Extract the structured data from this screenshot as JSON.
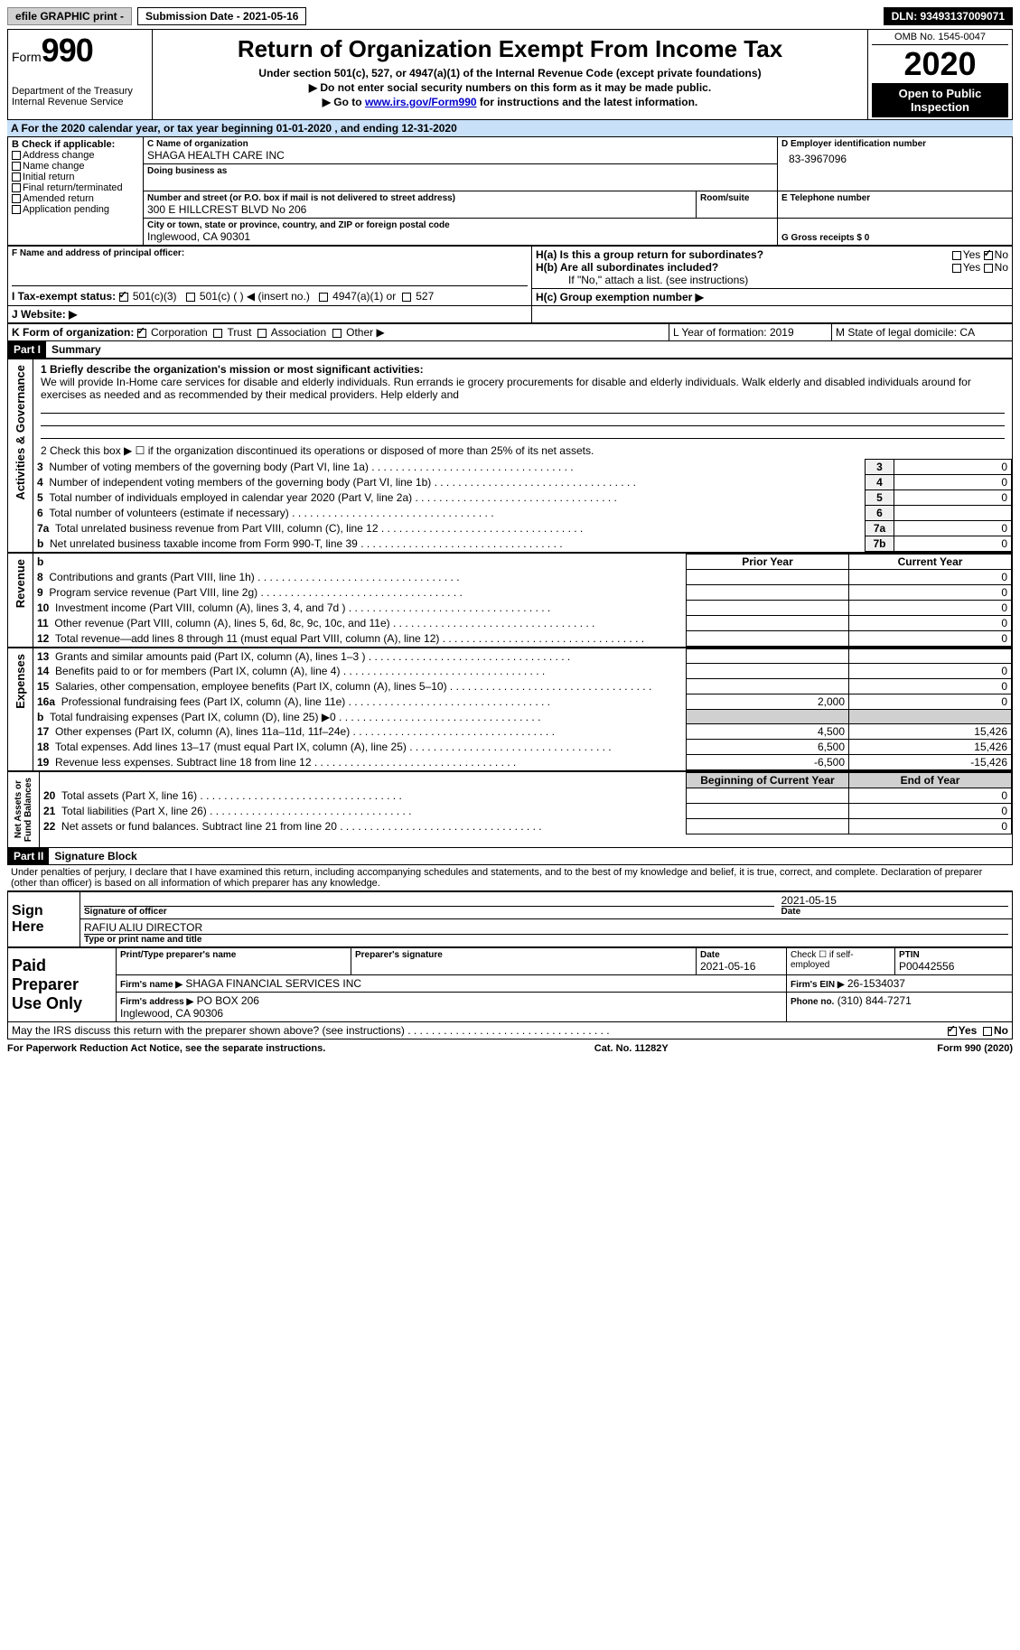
{
  "topbar": {
    "efile": "efile GRAPHIC print -",
    "submission": "Submission Date - 2021-05-16",
    "dln": "DLN: 93493137009071"
  },
  "header": {
    "form_label": "Form",
    "form_num": "990",
    "dept": "Department of the Treasury\nInternal Revenue Service",
    "title": "Return of Organization Exempt From Income Tax",
    "under": "Under section 501(c), 527, or 4947(a)(1) of the Internal Revenue Code (except private foundations)",
    "line1": "▶ Do not enter social security numbers on this form as it may be made public.",
    "line2_a": "▶ Go to ",
    "line2_link": "www.irs.gov/Form990",
    "line2_b": " for instructions and the latest information.",
    "omb": "OMB No. 1545-0047",
    "tax_year": "2020",
    "open": "Open to Public Inspection"
  },
  "row_a": "A For the 2020 calendar year, or tax year beginning 01-01-2020   , and ending 12-31-2020",
  "section_b": {
    "label": "B Check if applicable:",
    "opts": [
      "Address change",
      "Name change",
      "Initial return",
      "Final return/terminated",
      "Amended return",
      "Application pending"
    ]
  },
  "section_c": {
    "label": "C Name of organization",
    "org": "SHAGA HEALTH CARE INC",
    "dba_label": "Doing business as",
    "street_label": "Number and street (or P.O. box if mail is not delivered to street address)",
    "street": "300 E HILLCREST BLVD No 206",
    "room_label": "Room/suite",
    "city_label": "City or town, state or province, country, and ZIP or foreign postal code",
    "city": "Inglewood, CA  90301"
  },
  "section_d": {
    "label": "D Employer identification number",
    "val": "83-3967096"
  },
  "section_e": {
    "label": "E Telephone number"
  },
  "section_g": {
    "label": "G Gross receipts $ 0"
  },
  "section_f": {
    "label": "F Name and address of principal officer:"
  },
  "section_h": {
    "a": "H(a)  Is this a group return for subordinates?",
    "b": "H(b)  Are all subordinates included?",
    "no_note": "If \"No,\" attach a list. (see instructions)",
    "c": "H(c)  Group exemption number ▶",
    "yes": "Yes",
    "no": "No"
  },
  "section_i": {
    "label": "I  Tax-exempt status:",
    "a": "501(c)(3)",
    "b": "501(c) (  ) ◀ (insert no.)",
    "c": "4947(a)(1) or",
    "d": "527"
  },
  "section_j": {
    "label": "J  Website: ▶"
  },
  "section_k": {
    "label": "K Form of organization:",
    "a": "Corporation",
    "b": "Trust",
    "c": "Association",
    "d": "Other ▶"
  },
  "section_l": {
    "label": "L Year of formation: 2019"
  },
  "section_m": {
    "label": "M State of legal domicile: CA"
  },
  "part1": {
    "hdr": "Part I",
    "title": "Summary",
    "q1": "1  Briefly describe the organization's mission or most significant activities:",
    "mission": "We will provide In-Home care services for disable and elderly individuals. Run errands ie grocery procurements for disable and elderly individuals. Walk elderly and disabled individuals around for exercises as needed and as recommended by their medical providers. Help elderly and",
    "q2": "2  Check this box ▶ ☐  if the organization discontinued its operations or disposed of more than 25% of its net assets.",
    "rows_gov": [
      {
        "n": "3",
        "t": "Number of voting members of the governing body (Part VI, line 1a)",
        "k": "3",
        "v": "0"
      },
      {
        "n": "4",
        "t": "Number of independent voting members of the governing body (Part VI, line 1b)",
        "k": "4",
        "v": "0"
      },
      {
        "n": "5",
        "t": "Total number of individuals employed in calendar year 2020 (Part V, line 2a)",
        "k": "5",
        "v": "0"
      },
      {
        "n": "6",
        "t": "Total number of volunteers (estimate if necessary)",
        "k": "6",
        "v": ""
      },
      {
        "n": "7a",
        "t": "Total unrelated business revenue from Part VIII, column (C), line 12",
        "k": "7a",
        "v": "0"
      },
      {
        "n": "b",
        "t": "Net unrelated business taxable income from Form 990-T, line 39",
        "k": "7b",
        "v": "0"
      }
    ],
    "col_prior": "Prior Year",
    "col_curr": "Current Year",
    "rows_rev": [
      {
        "n": "8",
        "t": "Contributions and grants (Part VIII, line 1h)",
        "p": "",
        "c": "0"
      },
      {
        "n": "9",
        "t": "Program service revenue (Part VIII, line 2g)",
        "p": "",
        "c": "0"
      },
      {
        "n": "10",
        "t": "Investment income (Part VIII, column (A), lines 3, 4, and 7d )",
        "p": "",
        "c": "0"
      },
      {
        "n": "11",
        "t": "Other revenue (Part VIII, column (A), lines 5, 6d, 8c, 9c, 10c, and 11e)",
        "p": "",
        "c": "0"
      },
      {
        "n": "12",
        "t": "Total revenue—add lines 8 through 11 (must equal Part VIII, column (A), line 12)",
        "p": "",
        "c": "0"
      }
    ],
    "rows_exp": [
      {
        "n": "13",
        "t": "Grants and similar amounts paid (Part IX, column (A), lines 1–3 )",
        "p": "",
        "c": ""
      },
      {
        "n": "14",
        "t": "Benefits paid to or for members (Part IX, column (A), line 4)",
        "p": "",
        "c": "0"
      },
      {
        "n": "15",
        "t": "Salaries, other compensation, employee benefits (Part IX, column (A), lines 5–10)",
        "p": "",
        "c": "0"
      },
      {
        "n": "16a",
        "t": "Professional fundraising fees (Part IX, column (A), line 11e)",
        "p": "2,000",
        "c": "0"
      },
      {
        "n": "b",
        "t": "Total fundraising expenses (Part IX, column (D), line 25) ▶0",
        "p": "GREY",
        "c": "GREY"
      },
      {
        "n": "17",
        "t": "Other expenses (Part IX, column (A), lines 11a–11d, 11f–24e)",
        "p": "4,500",
        "c": "15,426"
      },
      {
        "n": "18",
        "t": "Total expenses. Add lines 13–17 (must equal Part IX, column (A), line 25)",
        "p": "6,500",
        "c": "15,426"
      },
      {
        "n": "19",
        "t": "Revenue less expenses. Subtract line 18 from line 12",
        "p": "-6,500",
        "c": "-15,426"
      }
    ],
    "col_begin": "Beginning of Current Year",
    "col_end": "End of Year",
    "rows_net": [
      {
        "n": "20",
        "t": "Total assets (Part X, line 16)",
        "p": "",
        "c": "0"
      },
      {
        "n": "21",
        "t": "Total liabilities (Part X, line 26)",
        "p": "",
        "c": "0"
      },
      {
        "n": "22",
        "t": "Net assets or fund balances. Subtract line 21 from line 20",
        "p": "",
        "c": "0"
      }
    ],
    "vlabels": {
      "gov": "Activities & Governance",
      "rev": "Revenue",
      "exp": "Expenses",
      "net": "Net Assets or\nFund Balances"
    }
  },
  "part2": {
    "hdr": "Part II",
    "title": "Signature Block",
    "decl": "Under penalties of perjury, I declare that I have examined this return, including accompanying schedules and statements, and to the best of my knowledge and belief, it is true, correct, and complete. Declaration of preparer (other than officer) is based on all information of which preparer has any knowledge.",
    "sign_here": "Sign Here",
    "sig_officer": "Signature of officer",
    "sig_date": "2021-05-15",
    "date_label": "Date",
    "name_title": "RAFIU ALIU  DIRECTOR",
    "name_title_label": "Type or print name and title",
    "paid": "Paid Preparer Use Only",
    "prep_name_label": "Print/Type preparer's name",
    "prep_sig_label": "Preparer's signature",
    "prep_date_label": "Date",
    "prep_date": "2021-05-16",
    "check_self": "Check ☐ if self-employed",
    "ptin_label": "PTIN",
    "ptin": "P00442556",
    "firm_name_label": "Firm's name    ▶",
    "firm_name": "SHAGA FINANCIAL SERVICES INC",
    "firm_ein_label": "Firm's EIN ▶",
    "firm_ein": "26-1534037",
    "firm_addr_label": "Firm's address ▶",
    "firm_addr": "PO BOX 206\nInglewood, CA  90306",
    "phone_label": "Phone no.",
    "phone": "(310) 844-7271",
    "discuss": "May the IRS discuss this return with the preparer shown above? (see instructions)",
    "yes": "Yes",
    "no": "No"
  },
  "footer": {
    "left": "For Paperwork Reduction Act Notice, see the separate instructions.",
    "mid": "Cat. No. 11282Y",
    "right": "Form 990 (2020)"
  }
}
